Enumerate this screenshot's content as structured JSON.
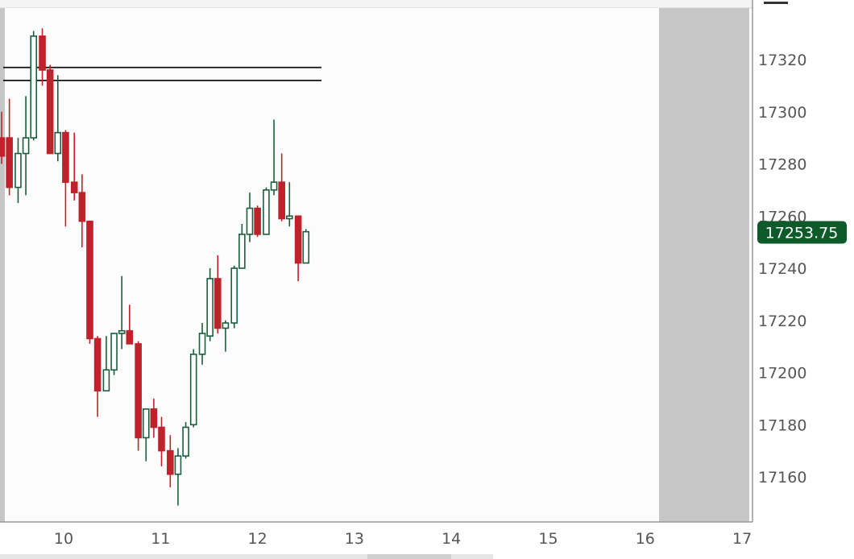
{
  "chart_data": {
    "type": "candlestick",
    "title": "",
    "xlabel": "",
    "ylabel": "",
    "ylim": [
      17145,
      17338
    ],
    "xlim": [
      9.35,
      17.1
    ],
    "y_ticks": [
      17320,
      17300,
      17280,
      17260,
      17240,
      17220,
      17200,
      17180,
      17160
    ],
    "x_ticks": [
      10,
      11,
      12,
      13,
      14,
      15,
      16,
      17
    ],
    "horizontal_lines": [
      17317,
      17312
    ],
    "last_price": "17253.75",
    "colors": {
      "up": "#1b5e3b",
      "down": "#c0222c",
      "badge": "#0e5a2a"
    },
    "candles": [
      {
        "x": 9.36,
        "o": 17290,
        "h": 17300,
        "l": 17280,
        "c": 17283
      },
      {
        "x": 9.44,
        "o": 17290,
        "h": 17305,
        "l": 17268,
        "c": 17271
      },
      {
        "x": 9.53,
        "o": 17271,
        "h": 17290,
        "l": 17265,
        "c": 17284
      },
      {
        "x": 9.61,
        "o": 17284,
        "h": 17306,
        "l": 17268,
        "c": 17290
      },
      {
        "x": 9.69,
        "o": 17290,
        "h": 17331,
        "l": 17289,
        "c": 17329
      },
      {
        "x": 9.78,
        "o": 17329,
        "h": 17332,
        "l": 17310,
        "c": 17316
      },
      {
        "x": 9.86,
        "o": 17316,
        "h": 17318,
        "l": 17284,
        "c": 17284
      },
      {
        "x": 9.94,
        "o": 17284,
        "h": 17314,
        "l": 17281,
        "c": 17292
      },
      {
        "x": 10.02,
        "o": 17292,
        "h": 17293,
        "l": 17256,
        "c": 17273
      },
      {
        "x": 10.11,
        "o": 17273,
        "h": 17292,
        "l": 17266,
        "c": 17269
      },
      {
        "x": 10.19,
        "o": 17269,
        "h": 17276,
        "l": 17248,
        "c": 17258
      },
      {
        "x": 10.27,
        "o": 17258,
        "h": 17258,
        "l": 17211,
        "c": 17213
      },
      {
        "x": 10.35,
        "o": 17213,
        "h": 17214,
        "l": 17183,
        "c": 17193
      },
      {
        "x": 10.44,
        "o": 17193,
        "h": 17214,
        "l": 17193,
        "c": 17201
      },
      {
        "x": 10.52,
        "o": 17201,
        "h": 17215,
        "l": 17199,
        "c": 17215
      },
      {
        "x": 10.6,
        "o": 17215,
        "h": 17237,
        "l": 17209,
        "c": 17216
      },
      {
        "x": 10.68,
        "o": 17216,
        "h": 17226,
        "l": 17211,
        "c": 17211
      },
      {
        "x": 10.77,
        "o": 17211,
        "h": 17212,
        "l": 17170,
        "c": 17175
      },
      {
        "x": 10.85,
        "o": 17175,
        "h": 17186,
        "l": 17166,
        "c": 17186
      },
      {
        "x": 10.93,
        "o": 17186,
        "h": 17190,
        "l": 17175,
        "c": 17179
      },
      {
        "x": 11.01,
        "o": 17179,
        "h": 17183,
        "l": 17164,
        "c": 17170
      },
      {
        "x": 11.1,
        "o": 17170,
        "h": 17176,
        "l": 17156,
        "c": 17161
      },
      {
        "x": 11.18,
        "o": 17161,
        "h": 17171,
        "l": 17149,
        "c": 17168
      },
      {
        "x": 11.26,
        "o": 17168,
        "h": 17181,
        "l": 17167,
        "c": 17179
      },
      {
        "x": 11.34,
        "o": 17180,
        "h": 17209,
        "l": 17179,
        "c": 17207
      },
      {
        "x": 11.43,
        "o": 17207,
        "h": 17219,
        "l": 17203,
        "c": 17215
      },
      {
        "x": 11.51,
        "o": 17214,
        "h": 17240,
        "l": 17212,
        "c": 17236
      },
      {
        "x": 11.59,
        "o": 17236,
        "h": 17245,
        "l": 17215,
        "c": 17217
      },
      {
        "x": 11.67,
        "o": 17217,
        "h": 17220,
        "l": 17208,
        "c": 17219
      },
      {
        "x": 11.76,
        "o": 17219,
        "h": 17241,
        "l": 17217,
        "c": 17240
      },
      {
        "x": 11.84,
        "o": 17240,
        "h": 17257,
        "l": 17240,
        "c": 17253
      },
      {
        "x": 11.92,
        "o": 17253,
        "h": 17269,
        "l": 17250,
        "c": 17263
      },
      {
        "x": 12.0,
        "o": 17263,
        "h": 17264,
        "l": 17252,
        "c": 17253
      },
      {
        "x": 12.09,
        "o": 17253,
        "h": 17271,
        "l": 17253,
        "c": 17270
      },
      {
        "x": 12.17,
        "o": 17270,
        "h": 17297,
        "l": 17268,
        "c": 17273
      },
      {
        "x": 12.25,
        "o": 17273,
        "h": 17284,
        "l": 17258,
        "c": 17259
      },
      {
        "x": 12.33,
        "o": 17259,
        "h": 17273,
        "l": 17256,
        "c": 17260
      },
      {
        "x": 12.42,
        "o": 17260,
        "h": 17260,
        "l": 17235,
        "c": 17242
      },
      {
        "x": 12.5,
        "o": 17242,
        "h": 17255,
        "l": 17242,
        "c": 17254
      }
    ]
  }
}
